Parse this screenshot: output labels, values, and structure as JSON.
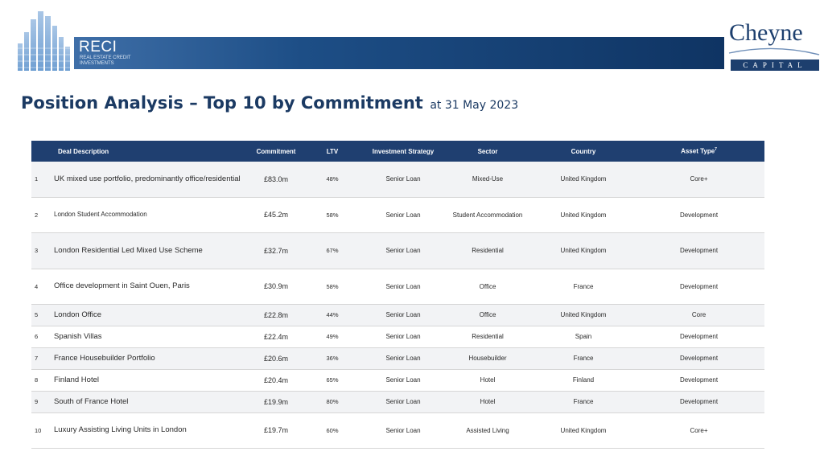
{
  "header": {
    "reci_title": "RECI",
    "reci_subtitle": "Real Estate Credit Investments",
    "logo_name": "Cheyne",
    "logo_sub": "CAPITAL"
  },
  "page": {
    "title": "Position Analysis – Top 10 by Commitment",
    "date": "at 31 May 2023"
  },
  "table": {
    "headers": {
      "description": "Deal Description",
      "commitment": "Commitment",
      "ltv": "LTV",
      "strategy": "Investment Strategy",
      "sector": "Sector",
      "country": "Country",
      "asset_type": "Asset Type",
      "asset_type_note": "7"
    },
    "rows": [
      {
        "num": "1",
        "description": "UK mixed use portfolio, predominantly office/residential",
        "commitment": "£83.0m",
        "ltv": "48%",
        "strategy": "Senior Loan",
        "sector": "Mixed-Use",
        "country": "United Kingdom",
        "asset_type": "Core+"
      },
      {
        "num": "2",
        "description": "London Student Accommodation",
        "commitment": "£45.2m",
        "ltv": "58%",
        "strategy": "Senior Loan",
        "sector": "Student Accommodation",
        "country": "United Kingdom",
        "asset_type": "Development"
      },
      {
        "num": "3",
        "description": "London Residential Led Mixed Use Scheme",
        "commitment": "£32.7m",
        "ltv": "67%",
        "strategy": "Senior Loan",
        "sector": "Residential",
        "country": "United Kingdom",
        "asset_type": "Development"
      },
      {
        "num": "4",
        "description": "Office development in Saint Ouen, Paris",
        "commitment": "£30.9m",
        "ltv": "58%",
        "strategy": "Senior Loan",
        "sector": "Office",
        "country": "France",
        "asset_type": "Development"
      },
      {
        "num": "5",
        "description": "London Office",
        "commitment": "£22.8m",
        "ltv": "44%",
        "strategy": "Senior Loan",
        "sector": "Office",
        "country": "United Kingdom",
        "asset_type": "Core"
      },
      {
        "num": "6",
        "description": "Spanish Villas",
        "commitment": "£22.4m",
        "ltv": "49%",
        "strategy": "Senior Loan",
        "sector": "Residential",
        "country": "Spain",
        "asset_type": "Development"
      },
      {
        "num": "7",
        "description": "France Housebuilder Portfolio",
        "commitment": "£20.6m",
        "ltv": "36%",
        "strategy": "Senior Loan",
        "sector": "Housebuilder",
        "country": "France",
        "asset_type": "Development"
      },
      {
        "num": "8",
        "description": "Finland Hotel",
        "commitment": "£20.4m",
        "ltv": "65%",
        "strategy": "Senior Loan",
        "sector": "Hotel",
        "country": "Finland",
        "asset_type": "Development"
      },
      {
        "num": "9",
        "description": "South of France Hotel",
        "commitment": "£19.9m",
        "ltv": "80%",
        "strategy": "Senior Loan",
        "sector": "Hotel",
        "country": "France",
        "asset_type": "Development"
      },
      {
        "num": "10",
        "description": "Luxury Assisting Living Units in London",
        "commitment": "£19.7m",
        "ltv": "60%",
        "strategy": "Senior Loan",
        "sector": "Assisted Living",
        "country": "United Kingdom",
        "asset_type": "Core+"
      }
    ]
  }
}
